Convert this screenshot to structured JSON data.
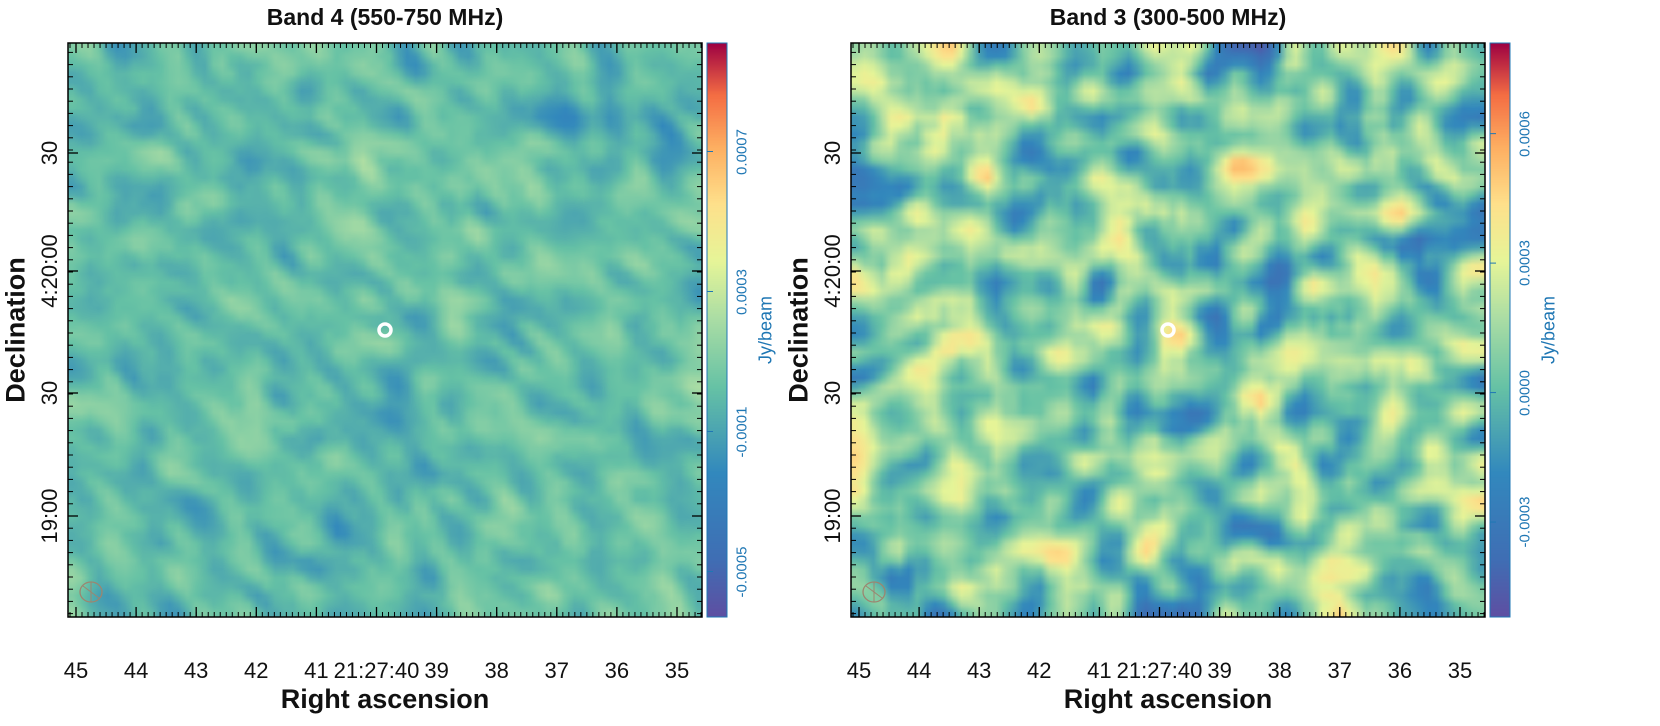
{
  "colors": {
    "axis_text": "#111111",
    "colorbar_text": "#1f77b4",
    "source_marker": "#ffffff",
    "beam": "#9c8570"
  },
  "chart_data": [
    {
      "type": "heatmap",
      "title": "Band 4 (550-750 MHz)",
      "xlabel": "Right ascension",
      "ylabel": "Declination",
      "xticks": [
        "45",
        "44",
        "43",
        "42",
        "41",
        "21:27:40",
        "39",
        "38",
        "37",
        "36",
        "35"
      ],
      "yticks": [
        "19:00",
        "30",
        "4:20:00",
        "30"
      ],
      "colorbar": {
        "label": "Jy/beam",
        "ticks": [
          "-0.0005",
          "-0.0001",
          "0.0003",
          "0.0007"
        ],
        "vmin": -0.00063,
        "vmax": 0.00101
      },
      "field_stats": {
        "mean": 1e-05,
        "rms": 7e-05,
        "max": 0.00031
      },
      "source_marker": "circle",
      "beam": "ellipse"
    },
    {
      "type": "heatmap",
      "title": "Band 3 (300-500 MHz)",
      "xlabel": "Right ascension",
      "ylabel": "Declination",
      "xticks": [
        "45",
        "44",
        "43",
        "42",
        "41",
        "21:27:40",
        "39",
        "38",
        "37",
        "36",
        "35"
      ],
      "yticks": [
        "19:00",
        "30",
        "4:20:00",
        "30"
      ],
      "colorbar": {
        "label": "Jy/beam",
        "ticks": [
          "-0.0003",
          "0.0000",
          "0.0003",
          "0.0006"
        ],
        "vmin": -0.00052,
        "vmax": 0.00081
      },
      "field_stats": {
        "mean": 7e-05,
        "rms": 0.00015,
        "max": 0.00056
      },
      "source_marker": "circle",
      "beam": "ellipse"
    }
  ]
}
